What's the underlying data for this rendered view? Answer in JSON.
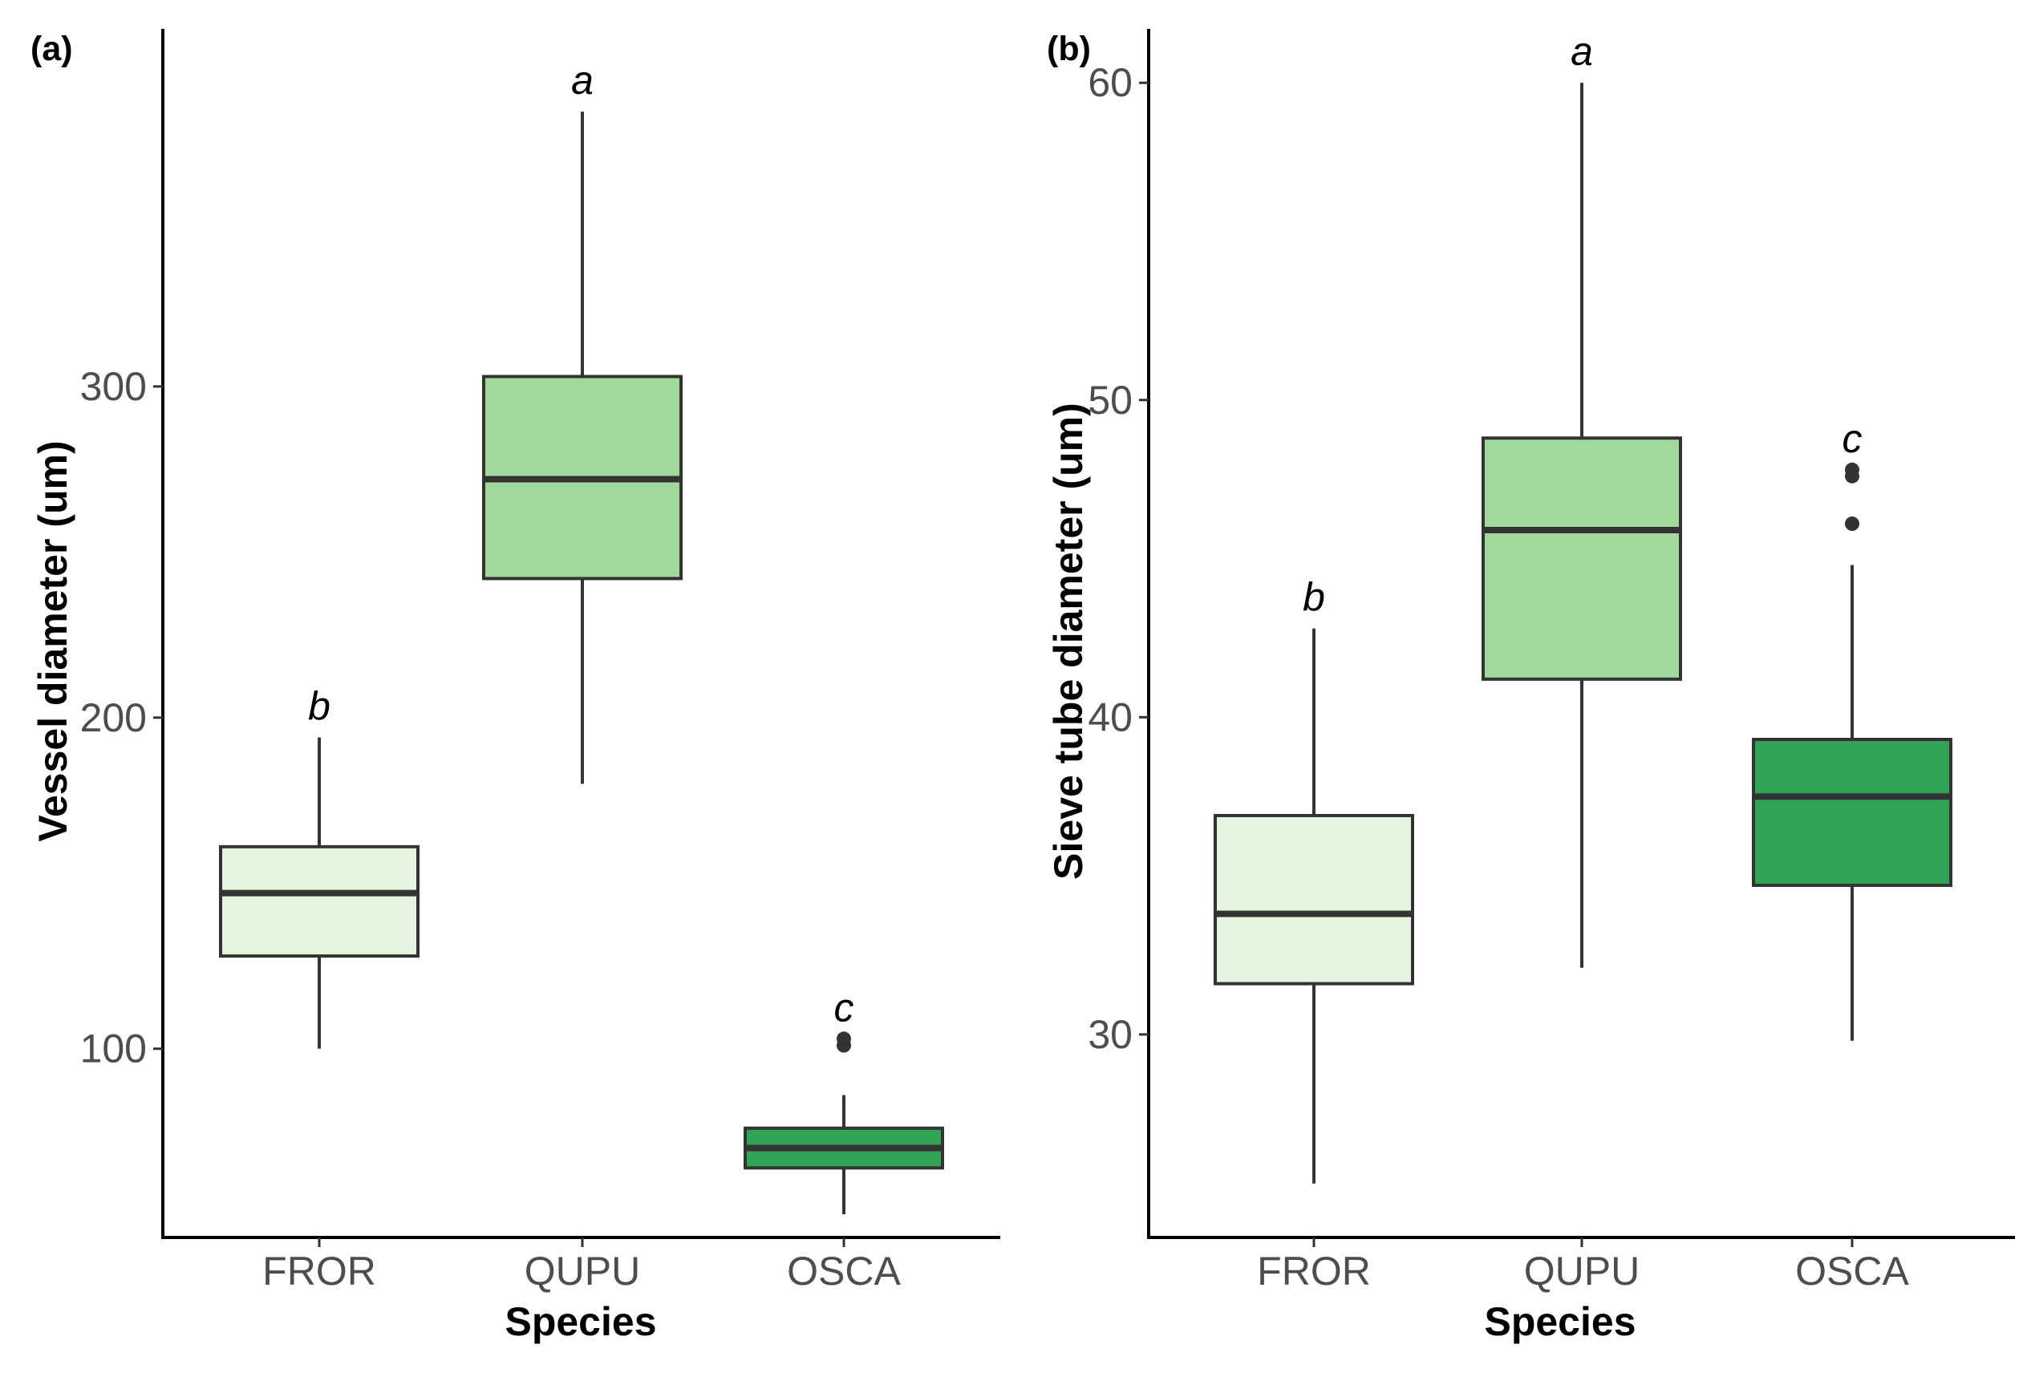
{
  "chart_data": [
    {
      "type": "box",
      "panel_label": "(a)",
      "xlabel": "Species",
      "ylabel": "Vessel diameter (um)",
      "categories": [
        "FROR",
        "QUPU",
        "OSCA"
      ],
      "ylim": [
        43,
        408
      ],
      "yticks": [
        100,
        200,
        300
      ],
      "colors": [
        "#e5f5e0",
        "#a1d99b",
        "#31a354"
      ],
      "boxes": [
        {
          "category": "FROR",
          "min": 100,
          "q1": 128,
          "median": 147,
          "q3": 161,
          "max": 194,
          "outliers": [],
          "letter": "b"
        },
        {
          "category": "QUPU",
          "min": 180,
          "q1": 242,
          "median": 272,
          "q3": 303,
          "max": 383,
          "outliers": [],
          "letter": "a"
        },
        {
          "category": "OSCA",
          "min": 50,
          "q1": 64,
          "median": 70,
          "q3": 76,
          "max": 86,
          "outliers": [
            101,
            103
          ],
          "letter": "c"
        }
      ]
    },
    {
      "type": "box",
      "panel_label": "(b)",
      "xlabel": "Species",
      "ylabel": "Sieve tube diameter (um)",
      "categories": [
        "FROR",
        "QUPU",
        "OSCA"
      ],
      "ylim": [
        23.6,
        61.7
      ],
      "yticks": [
        30,
        40,
        50,
        60
      ],
      "colors": [
        "#e5f5e0",
        "#a1d99b",
        "#31a354"
      ],
      "boxes": [
        {
          "category": "FROR",
          "min": 25.3,
          "q1": 31.6,
          "median": 33.8,
          "q3": 36.9,
          "max": 42.8,
          "outliers": [],
          "letter": "b"
        },
        {
          "category": "QUPU",
          "min": 32.1,
          "q1": 41.2,
          "median": 45.9,
          "q3": 48.8,
          "max": 60.0,
          "outliers": [],
          "letter": "a"
        },
        {
          "category": "OSCA",
          "min": 29.8,
          "q1": 34.7,
          "median": 37.5,
          "q3": 39.3,
          "max": 44.8,
          "outliers": [
            46.1,
            47.6,
            47.8
          ],
          "letter": "c"
        }
      ]
    }
  ]
}
